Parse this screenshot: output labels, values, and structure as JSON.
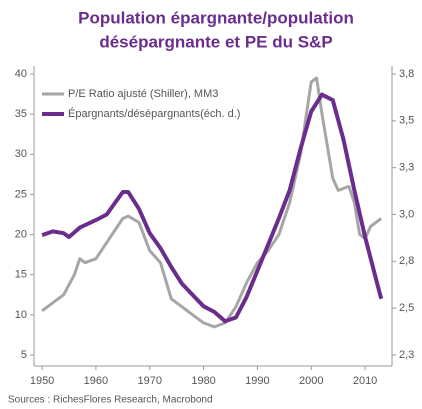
{
  "chart_data": {
    "type": "line",
    "title": [
      "Population épargnante/population",
      "désépargnante et PE du S&P"
    ],
    "source": "Sources : RichesFlores Research, Macrobond",
    "xlim": [
      1948.5,
      2015
    ],
    "xticks": [
      1950,
      1960,
      1970,
      1980,
      1990,
      2000,
      2010
    ],
    "ylim": [
      5,
      40
    ],
    "yticks": [
      5,
      10,
      15,
      20,
      25,
      30,
      35,
      40
    ],
    "y2lim": [
      2.25,
      3.75
    ],
    "y2ticks": [
      {
        "value": 2.25,
        "label": "2,3"
      },
      {
        "value": 2.5,
        "label": "2,5"
      },
      {
        "value": 2.75,
        "label": "2,8"
      },
      {
        "value": 3.0,
        "label": "3,0"
      },
      {
        "value": 3.25,
        "label": "3,3"
      },
      {
        "value": 3.5,
        "label": "3,5"
      },
      {
        "value": 3.75,
        "label": "3,8"
      }
    ],
    "legend": "top-left",
    "series": [
      {
        "name": "P/E Ratio ajusté (Shiller), MM3",
        "color": "#a6a6a6",
        "x": [
          1950,
          1952,
          1954,
          1956,
          1957,
          1958,
          1960,
          1962,
          1964,
          1965,
          1966,
          1968,
          1970,
          1972,
          1974,
          1976,
          1978,
          1980,
          1982,
          1984,
          1986,
          1988,
          1990,
          1992,
          1994,
          1996,
          1998,
          2000,
          2001,
          2002,
          2004,
          2005,
          2007,
          2008,
          2009,
          2010,
          2011,
          2013
        ],
        "values": [
          10.5,
          11.5,
          12.5,
          15,
          17,
          16.5,
          17,
          19,
          21,
          22,
          22.3,
          21.5,
          18,
          16.5,
          12,
          11,
          10,
          9,
          8.5,
          9,
          11,
          14,
          16.5,
          18,
          20,
          24,
          30,
          39,
          39.5,
          35,
          27,
          25.5,
          26,
          24,
          20,
          19.5,
          21,
          22
        ]
      },
      {
        "name": "Épargnants/désépargnants(éch. d.)",
        "color": "#6b2d8c",
        "axis": "y2",
        "x": [
          1950,
          1952,
          1954,
          1955,
          1957,
          1960,
          1962,
          1964,
          1965,
          1966,
          1968,
          1970,
          1972,
          1974,
          1976,
          1978,
          1980,
          1982,
          1984,
          1986,
          1988,
          1990,
          1992,
          1994,
          1996,
          1998,
          2000,
          2002,
          2004,
          2006,
          2008,
          2010,
          2012,
          2013
        ],
        "values": [
          2.89,
          2.91,
          2.9,
          2.88,
          2.93,
          2.97,
          3.0,
          3.08,
          3.12,
          3.12,
          3.03,
          2.9,
          2.82,
          2.72,
          2.63,
          2.57,
          2.51,
          2.48,
          2.43,
          2.45,
          2.56,
          2.7,
          2.84,
          2.98,
          3.13,
          3.35,
          3.55,
          3.64,
          3.61,
          3.4,
          3.13,
          2.88,
          2.66,
          2.55
        ]
      }
    ]
  }
}
